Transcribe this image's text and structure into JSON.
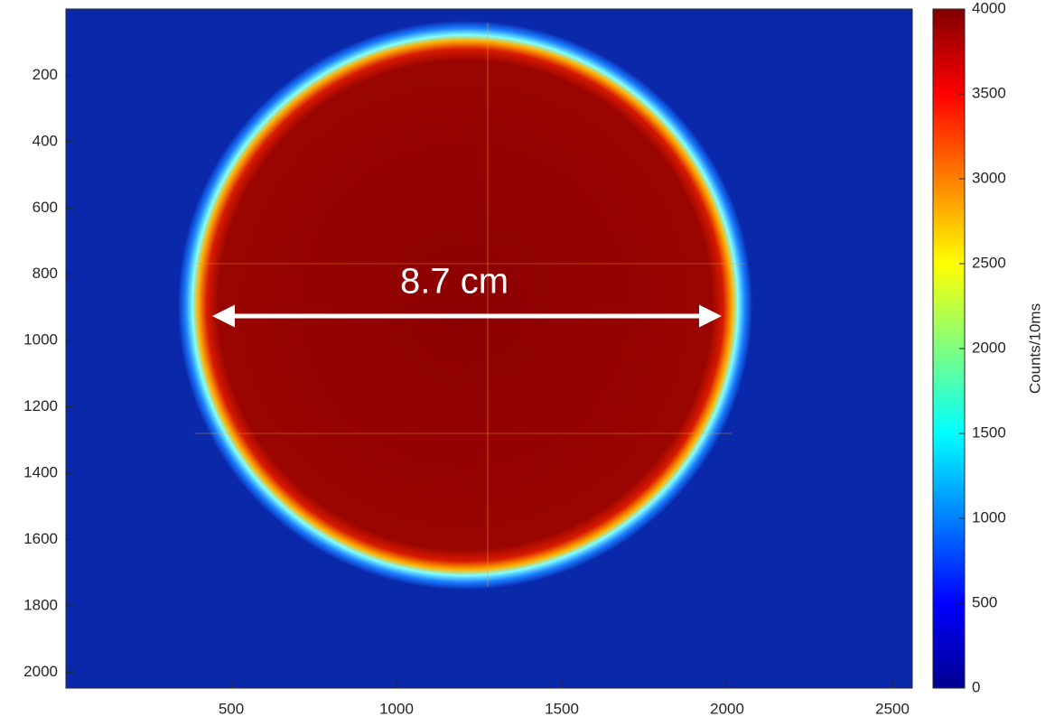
{
  "chart_data": {
    "type": "heatmap",
    "annotation": "8.7 cm",
    "xlim": [
      0,
      2560
    ],
    "xticks": [
      500,
      1000,
      1500,
      2000,
      2500
    ],
    "ylim": [
      0,
      2048
    ],
    "yticks": [
      200,
      400,
      600,
      800,
      1000,
      1200,
      1400,
      1600,
      1800,
      2000
    ],
    "y_reversed": true,
    "colormap": "jet",
    "colorbar": {
      "label": "Counts/10ms",
      "lim": [
        0,
        4000
      ],
      "ticks": [
        0,
        500,
        1000,
        1500,
        2000,
        2500,
        3000,
        3500,
        4000
      ]
    }
  }
}
